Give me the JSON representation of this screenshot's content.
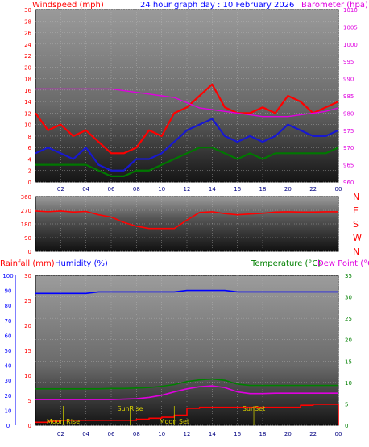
{
  "chart_data": [
    {
      "type": "line",
      "title": "24 hour graph day : 10 February 2026",
      "left_axis_label": "Windspeed (mph)",
      "right_axis_label": "Barometer (hpa)",
      "left_ylim": [
        0,
        30
      ],
      "left_ticks": [
        "0",
        "2",
        "4",
        "6",
        "8",
        "10",
        "12",
        "14",
        "16",
        "18",
        "20",
        "22",
        "24",
        "26",
        "28",
        "30"
      ],
      "right_ylim": [
        960,
        1010
      ],
      "right_ticks": [
        "960",
        "965",
        "970",
        "975",
        "980",
        "985",
        "990",
        "995",
        "1000",
        "1005",
        "1010"
      ],
      "x_ticks": [
        "02",
        "04",
        "06",
        "08",
        "10",
        "12",
        "14",
        "16",
        "18",
        "20",
        "22",
        "00"
      ],
      "x": [
        0,
        1,
        2,
        3,
        4,
        5,
        6,
        7,
        8,
        9,
        10,
        11,
        12,
        13,
        14,
        15,
        16,
        17,
        18,
        19,
        20,
        21,
        22,
        23,
        24
      ],
      "series": [
        {
          "color": "#ff0000",
          "axis": "left",
          "values": [
            12,
            9,
            10,
            8,
            9,
            7,
            5,
            5,
            6,
            9,
            8,
            12,
            13,
            15,
            17,
            13,
            12,
            12,
            13,
            12,
            15,
            14,
            12,
            13,
            14
          ]
        },
        {
          "color": "#1818d0",
          "axis": "left",
          "values": [
            5,
            6,
            5,
            4,
            6,
            3,
            2,
            2,
            4,
            4,
            5,
            7,
            9,
            10,
            11,
            8,
            7,
            8,
            7,
            8,
            10,
            9,
            8,
            8,
            9
          ]
        },
        {
          "color": "#007800",
          "axis": "left",
          "values": [
            3,
            3,
            3,
            3,
            3,
            2,
            1,
            1,
            2,
            2,
            3,
            4,
            5,
            6,
            6,
            5,
            4,
            5,
            4,
            5,
            5,
            5,
            5,
            5,
            6
          ]
        },
        {
          "color": "#e000e0",
          "axis": "right",
          "values": [
            987,
            987,
            987,
            987,
            987,
            987,
            987,
            986.5,
            986,
            985.5,
            985,
            984.5,
            983,
            981.5,
            981,
            980.5,
            980,
            979.5,
            979,
            979,
            979,
            979.5,
            980,
            980.5,
            981.5
          ]
        }
      ],
      "legend_placement": "none",
      "grid": true
    },
    {
      "type": "line",
      "left_ylim": [
        0,
        360
      ],
      "left_ticks": [
        "0",
        "90",
        "180",
        "270",
        "360"
      ],
      "right_labels": [
        "N",
        "W",
        "S",
        "E",
        "N"
      ],
      "x_ticks": [
        "02",
        "04",
        "06",
        "08",
        "10",
        "12",
        "14",
        "16",
        "18",
        "20",
        "22",
        "00"
      ],
      "x": [
        0,
        1,
        2,
        3,
        4,
        5,
        6,
        7,
        8,
        9,
        10,
        11,
        12,
        13,
        14,
        15,
        16,
        17,
        18,
        19,
        20,
        21,
        22,
        23,
        24
      ],
      "series": [
        {
          "color": "#ff0000",
          "values": [
            265,
            260,
            265,
            258,
            262,
            240,
            225,
            190,
            165,
            150,
            150,
            150,
            205,
            255,
            260,
            248,
            240,
            245,
            250,
            258,
            260,
            258,
            258,
            260,
            260
          ]
        }
      ],
      "grid": true
    },
    {
      "type": "line",
      "rain_label": "Rainfall (mm)",
      "humidity_label": "Humidity (%)",
      "temperature_label": "Temperature (°C)",
      "dewpoint_label": "Dew Point (°C)",
      "humidity_ylim": [
        0,
        100
      ],
      "humidity_ticks": [
        "0",
        "10",
        "20",
        "30",
        "40",
        "50",
        "60",
        "70",
        "80",
        "90",
        "100"
      ],
      "rain_ylim": [
        0,
        30
      ],
      "rain_ticks": [
        "0",
        "5",
        "10",
        "15",
        "20",
        "25",
        "30"
      ],
      "temp_ylim": [
        0,
        35
      ],
      "temp_ticks": [
        "0",
        "5",
        "10",
        "15",
        "20",
        "25",
        "30",
        "35"
      ],
      "x_ticks": [
        "02",
        "04",
        "06",
        "08",
        "10",
        "12",
        "14",
        "16",
        "18",
        "20",
        "22",
        "00"
      ],
      "x": [
        0,
        1,
        2,
        3,
        4,
        5,
        6,
        7,
        8,
        9,
        10,
        11,
        12,
        13,
        14,
        15,
        16,
        17,
        18,
        19,
        20,
        21,
        22,
        23,
        24
      ],
      "series": [
        {
          "color": "#0000ff",
          "axis": "humidity",
          "values": [
            88,
            88,
            88,
            88,
            88,
            89,
            89,
            89,
            89,
            89,
            89,
            89,
            90,
            90,
            90,
            90,
            89,
            89,
            89,
            89,
            89,
            89,
            89,
            89,
            89
          ]
        },
        {
          "color": "#008000",
          "axis": "temp",
          "values": [
            8.5,
            8.5,
            8.5,
            8.5,
            8.5,
            8.5,
            8.6,
            8.6,
            8.7,
            8.8,
            9.1,
            9.5,
            10.2,
            10.6,
            10.8,
            10.5,
            9.6,
            9.3,
            9.3,
            9.3,
            9.3,
            9.3,
            9.3,
            9.3,
            9.3
          ]
        },
        {
          "color": "#e000e0",
          "axis": "temp",
          "values": [
            6.0,
            6.0,
            6.0,
            6.0,
            6.0,
            6.0,
            6.0,
            6.1,
            6.2,
            6.5,
            7.0,
            7.8,
            8.5,
            9.0,
            9.2,
            8.8,
            7.8,
            7.4,
            7.4,
            7.5,
            7.5,
            7.5,
            7.5,
            7.5,
            7.5
          ]
        },
        {
          "color": "#ff0000",
          "axis": "rain",
          "step": true,
          "values": [
            0.6,
            0.8,
            1.0,
            1.0,
            1.0,
            1.0,
            1.0,
            1.0,
            1.2,
            1.4,
            1.6,
            2.0,
            3.4,
            3.6,
            3.6,
            3.6,
            3.6,
            3.6,
            3.6,
            3.6,
            3.6,
            4.0,
            4.2,
            4.2,
            4.2
          ]
        }
      ],
      "events": [
        {
          "label": "Moon Rise",
          "hour": 2.2
        },
        {
          "label": "SunRise",
          "hour": 7.5
        },
        {
          "label": "Moon Set",
          "hour": 11.0
        },
        {
          "label": "SunSet",
          "hour": 17.3
        }
      ],
      "grid": true
    }
  ],
  "colors": {
    "wind_title": "#ff0000",
    "title": "#0000ff",
    "baro_title": "#e000e0",
    "rain_title": "#ff0000",
    "humidity_title": "#0000ff",
    "temp_title": "#008000",
    "dew_title": "#e000e0",
    "event_text": "#d8d000",
    "event_line": "#c0c000"
  }
}
